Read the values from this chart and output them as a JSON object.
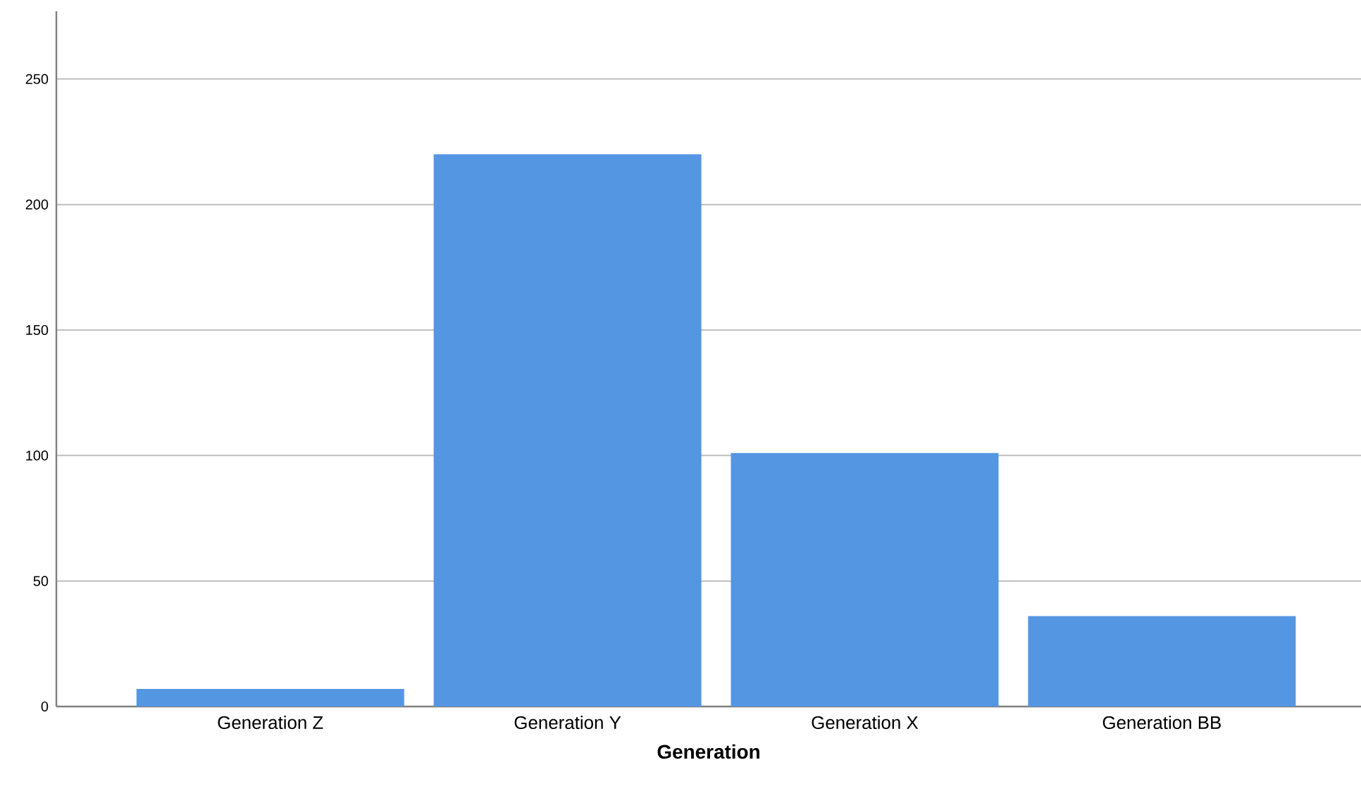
{
  "chart_data": {
    "type": "bar",
    "xlabel": "Generation",
    "categories": [
      "Generation Z",
      "Generation Y",
      "Generation X",
      "Generation BB"
    ],
    "values": [
      7,
      220,
      101,
      36
    ],
    "color": "#5596e3",
    "ylim": [
      0,
      277
    ],
    "yticks": [
      0,
      50,
      100,
      150,
      200,
      250
    ],
    "grid": "y"
  }
}
